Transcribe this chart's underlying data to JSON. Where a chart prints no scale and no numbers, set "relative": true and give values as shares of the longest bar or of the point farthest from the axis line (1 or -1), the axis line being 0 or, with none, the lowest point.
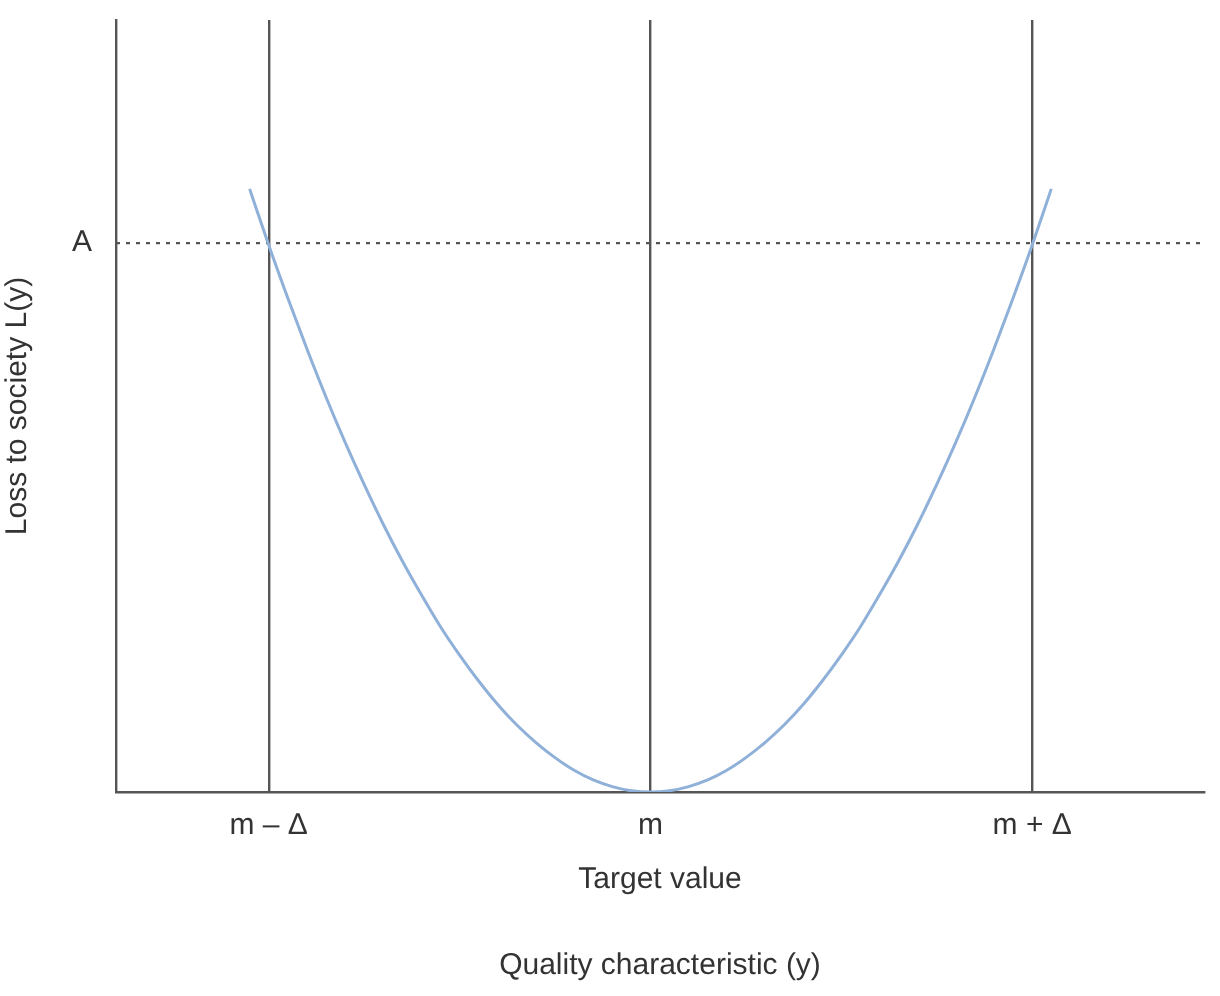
{
  "chart_data": {
    "type": "line",
    "relative": true,
    "xlabel": "Quality characteristic (y)",
    "ylabel": "Loss to society L(y)",
    "categories": [
      null,
      null,
      null,
      null,
      null,
      null,
      null,
      null,
      "m – Δ",
      null,
      null,
      null,
      null,
      null,
      null,
      null,
      null,
      null,
      null,
      null,
      null,
      null,
      null,
      null,
      null,
      null,
      null,
      null,
      "m",
      null,
      null,
      null,
      null,
      null,
      null,
      null,
      null,
      null,
      null,
      null,
      null,
      null,
      null,
      null,
      null,
      null,
      null,
      null,
      "m + Δ",
      null,
      null,
      null,
      null,
      null,
      null,
      null,
      null,
      null
    ],
    "series": [
      {
        "color": "#8fb0d8",
        "values": [
          null,
          null,
          null,
          null,
          null,
          null,
          null,
          1,
          0.907,
          0.819,
          0.735,
          0.655,
          0.58,
          0.51,
          0.444,
          0.383,
          0.327,
          0.274,
          0.227,
          0.184,
          0.145,
          0.111,
          0.082,
          0.057,
          0.036,
          0.02,
          0.009,
          0.002,
          0,
          0.002,
          0.009,
          0.02,
          0.036,
          0.057,
          0.082,
          0.111,
          0.145,
          0.184,
          0.227,
          0.274,
          0.327,
          0.383,
          0.444,
          0.51,
          0.58,
          0.655,
          0.735,
          0.819,
          0.907,
          1,
          null,
          null,
          null,
          null,
          null,
          null,
          null,
          null
        ]
      }
    ],
    "ref_lines": [
      {
        "axis": "y",
        "value": 0.91,
        "label": "A",
        "color": "#555555",
        "line_style": "dotted"
      }
    ],
    "annotations": [
      "Target value"
    ],
    "grid": "x",
    "legend": false,
    "marker": "none",
    "line_style": "solid"
  }
}
